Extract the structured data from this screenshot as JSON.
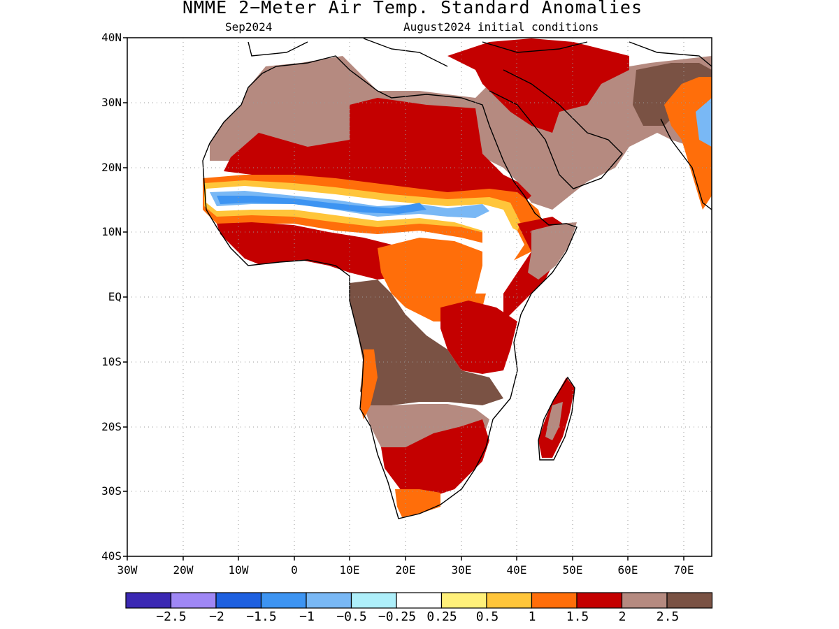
{
  "title": "NMME 2−Meter Air Temp. Standard Anomalies",
  "subtitle_left": "Sep2024",
  "subtitle_right": "August2024 initial conditions",
  "latitude_labels": [
    "40N",
    "30N",
    "20N",
    "10N",
    "EQ",
    "10S",
    "20S",
    "30S",
    "40S"
  ],
  "longitude_labels": [
    "30W",
    "20W",
    "10W",
    "0",
    "10E",
    "20E",
    "30E",
    "40E",
    "50E",
    "60E",
    "70E"
  ],
  "colorbar": {
    "colors": [
      "#3b28b3",
      "#9f87f5",
      "#1e60e0",
      "#3d94f2",
      "#79b8f5",
      "#aeeffa",
      "#ffffff",
      "#fff07a",
      "#ffc53a",
      "#ff6e0a",
      "#c40000",
      "#b58a80",
      "#7a5244"
    ],
    "labels": [
      "−2.5",
      "−2",
      "−1.5",
      "−1",
      "−0.5",
      "−0.25",
      "0.25",
      "0.5",
      "1",
      "1.5",
      "2",
      "2.5"
    ]
  },
  "colors": {
    "background": "#ffffff",
    "grid": "#9a9a9a",
    "coast": "#000000"
  }
}
